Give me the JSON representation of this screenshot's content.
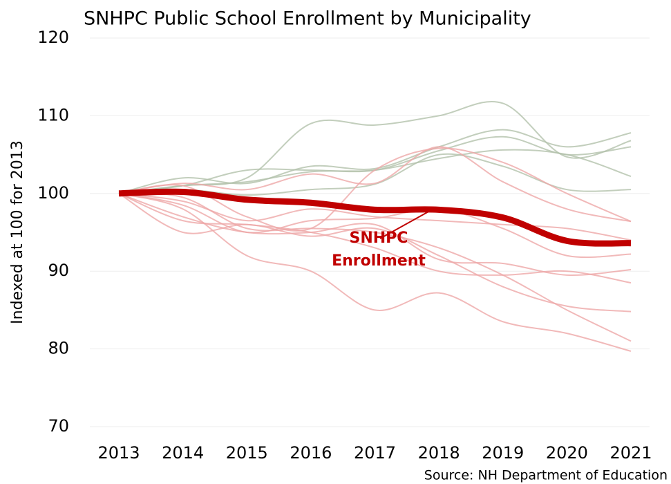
{
  "chart_data": {
    "type": "line",
    "title": "SNHPC Public School Enrollment by Municipality",
    "y_label": "Indexed at 100 for 2013",
    "source": "Source: NH Department of Education",
    "annotation": "SNHPC Enrollment",
    "categories": [
      "2013",
      "2014",
      "2015",
      "2016",
      "2017",
      "2018",
      "2019",
      "2020",
      "2021"
    ],
    "ylim": [
      70,
      120
    ],
    "yticks": [
      70,
      80,
      90,
      100,
      110,
      120
    ],
    "grid": true,
    "series": [
      {
        "color": "#b3c2ab",
        "values": [
          100,
          101,
          102,
          109,
          108.8,
          110,
          111.6,
          104.7,
          106.8
        ]
      },
      {
        "color": "#b3c2ab",
        "values": [
          100,
          102,
          101.3,
          103.5,
          103.2,
          106,
          108.2,
          106,
          107.8
        ]
      },
      {
        "color": "#b3c2ab",
        "values": [
          100,
          101,
          103,
          103,
          103,
          105.5,
          107.3,
          105,
          106
        ]
      },
      {
        "color": "#b3c2ab",
        "values": [
          100,
          101,
          101.5,
          102.8,
          103,
          104.5,
          105.6,
          105,
          102.2
        ]
      },
      {
        "color": "#b3c2ab",
        "values": [
          100,
          100.5,
          99.8,
          100.5,
          101.2,
          105,
          103.5,
          100.5,
          100.5
        ]
      },
      {
        "color": "#eea7a7",
        "values": [
          100,
          101.3,
          100.5,
          102.5,
          101.3,
          106,
          101.5,
          98,
          96.4
        ]
      },
      {
        "color": "#eea7a7",
        "values": [
          100,
          101,
          97,
          95.5,
          103,
          105.8,
          104,
          100,
          96.4
        ]
      },
      {
        "color": "#eea7a7",
        "values": [
          100,
          99,
          96.5,
          98,
          97,
          96.5,
          96,
          95.5,
          94
        ]
      },
      {
        "color": "#eea7a7",
        "values": [
          100,
          98.5,
          95,
          96.5,
          96.8,
          98,
          95.5,
          92,
          92.2
        ]
      },
      {
        "color": "#eea7a7",
        "values": [
          100,
          97,
          95,
          95,
          96,
          91.5,
          91,
          89.5,
          90.2
        ]
      },
      {
        "color": "#eea7a7",
        "values": [
          100,
          96.5,
          96,
          95,
          93,
          90,
          89.5,
          90,
          88.5
        ]
      },
      {
        "color": "#eea7a7",
        "values": [
          100,
          95,
          96,
          94.5,
          95.5,
          92,
          88,
          85.5,
          84.8
        ]
      },
      {
        "color": "#eea7a7",
        "values": [
          100,
          98,
          92,
          90,
          85,
          87.2,
          83.5,
          82,
          79.7
        ]
      },
      {
        "color": "#eea7a7",
        "values": [
          100,
          99.5,
          95.5,
          95.5,
          95,
          93,
          89.5,
          85,
          81
        ]
      },
      {
        "color": "#c00000",
        "values": [
          100,
          100.2,
          99.2,
          98.8,
          97.9,
          97.9,
          96.9,
          93.9,
          93.6
        ]
      }
    ]
  }
}
